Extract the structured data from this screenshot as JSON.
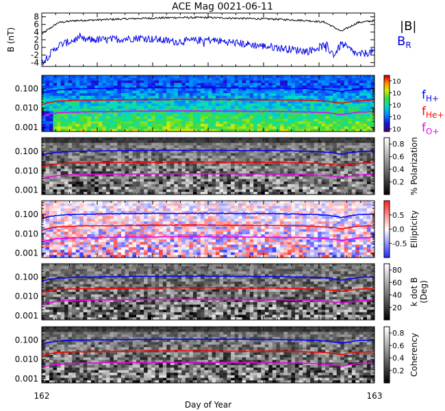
{
  "title": "ACE Mag 0021-06-11",
  "colors": {
    "btotal": "#000000",
    "br": "#0000e6",
    "f_h": "#0000ff",
    "f_he": "#ff0000",
    "f_o": "#ee00ee"
  },
  "chart_data": [
    {
      "type": "line",
      "panel": "magnetic-field",
      "ylabel": "B (nT)",
      "ylim": [
        -5,
        9
      ],
      "yticks": [
        "-4",
        "-2",
        "0",
        "2",
        "4",
        "6",
        "8"
      ],
      "x": [
        162.0,
        162.05,
        162.1,
        162.2,
        162.3,
        162.4,
        162.5,
        162.6,
        162.7,
        162.8,
        162.85,
        162.88,
        162.9,
        162.95,
        163.0
      ],
      "series": [
        {
          "name": "|B|",
          "values": [
            3.5,
            6.5,
            7.0,
            7.3,
            7.6,
            7.8,
            7.8,
            7.6,
            7.4,
            7.0,
            6.6,
            5.2,
            4.2,
            6.5,
            7.0
          ]
        },
        {
          "name": "B",
          "name_sub": "R",
          "values": [
            -4.0,
            0.5,
            2.0,
            2.0,
            2.5,
            1.5,
            2.0,
            1.0,
            0.0,
            -1.0,
            0.5,
            -2.0,
            1.0,
            -2.0,
            -1.0
          ]
        }
      ]
    },
    {
      "type": "heatmap",
      "panel": "power-spectrum",
      "ylim": [
        0.0006,
        0.5
      ],
      "yscale": "log",
      "yticks": [
        "0.001",
        "0.010",
        "0.100"
      ],
      "colorbar": {
        "tick_label": "10",
        "ticks": 5,
        "scale": "rainbow"
      },
      "legend": [
        {
          "label": "f",
          "sub": "H+"
        },
        {
          "label": "f",
          "sub": "He+"
        },
        {
          "label": "f",
          "sub": "O+"
        }
      ]
    },
    {
      "type": "heatmap",
      "panel": "polarization",
      "ylim": [
        0.0006,
        0.5
      ],
      "yscale": "log",
      "yticks": [
        "0.001",
        "0.010",
        "0.100"
      ],
      "colorbar": {
        "label": "% Polarization",
        "ticks": [
          "0.2",
          "0.4",
          "0.6",
          "0.8"
        ],
        "range": [
          0,
          0.9
        ],
        "scale": "gray"
      }
    },
    {
      "type": "heatmap",
      "panel": "ellipticity",
      "ylim": [
        0.0006,
        0.5
      ],
      "yscale": "log",
      "yticks": [
        "0.001",
        "0.010",
        "0.100"
      ],
      "colorbar": {
        "label": "Ellipticity",
        "ticks": [
          "-0.5",
          "0.0",
          "0.5"
        ],
        "range": [
          -1,
          1
        ],
        "scale": "bwr"
      }
    },
    {
      "type": "heatmap",
      "panel": "k-dot-b",
      "ylim": [
        0.0006,
        0.5
      ],
      "yscale": "log",
      "yticks": [
        "0.001",
        "0.010",
        "0.100"
      ],
      "colorbar": {
        "label": "k dot B",
        "label2": "(Deg)",
        "ticks": [
          "20",
          "40",
          "60",
          "80"
        ],
        "range": [
          0,
          90
        ],
        "scale": "gray"
      }
    },
    {
      "type": "heatmap",
      "panel": "coherency",
      "ylim": [
        0.0006,
        0.5
      ],
      "yscale": "log",
      "yticks": [
        "0.001",
        "0.010",
        "0.100"
      ],
      "colorbar": {
        "label": "Coherency",
        "ticks": [
          "0.2",
          "0.4",
          "0.6",
          "0.8"
        ],
        "range": [
          0,
          0.9
        ],
        "scale": "gray"
      }
    }
  ],
  "gyro_lines": {
    "x": [
      162.0,
      162.02,
      162.05,
      162.1,
      162.2,
      162.3,
      162.4,
      162.5,
      162.6,
      162.7,
      162.8,
      162.86,
      162.9,
      162.95,
      163.0
    ],
    "f_h": [
      0.06,
      0.075,
      0.09,
      0.1,
      0.105,
      0.11,
      0.112,
      0.112,
      0.11,
      0.108,
      0.1,
      0.09,
      0.07,
      0.095,
      0.105
    ],
    "f_he": [
      0.015,
      0.019,
      0.023,
      0.025,
      0.026,
      0.027,
      0.028,
      0.028,
      0.027,
      0.027,
      0.025,
      0.022,
      0.018,
      0.024,
      0.026
    ],
    "f_o": [
      0.0038,
      0.0047,
      0.0057,
      0.0062,
      0.0066,
      0.0068,
      0.007,
      0.007,
      0.0068,
      0.0067,
      0.0063,
      0.0056,
      0.0045,
      0.006,
      0.0066
    ]
  },
  "x_axis": {
    "label": "Day of Year",
    "range": [
      162,
      163
    ],
    "tick_labels": [
      "162",
      "163"
    ]
  }
}
